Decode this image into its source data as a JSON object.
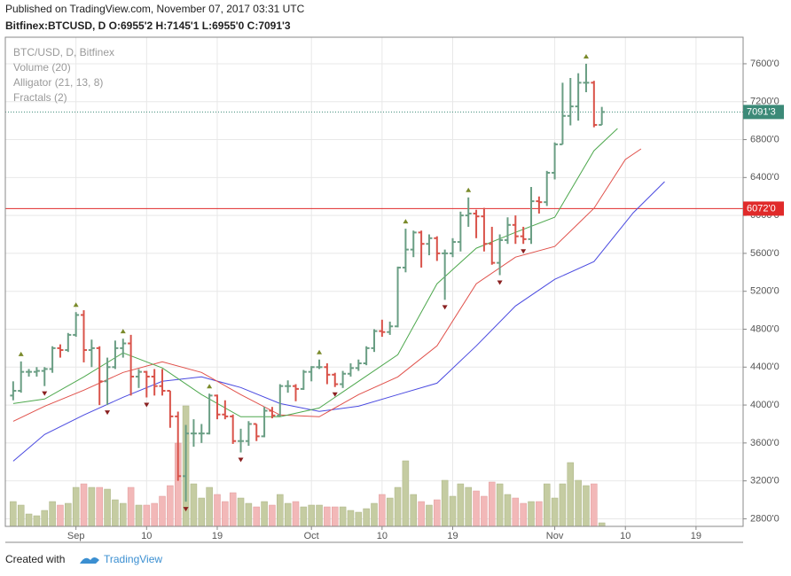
{
  "header": {
    "published": "Published on TradingView.com, November 07, 2017 03:31 UTC",
    "symbol_line": "Bitfinex:BTCUSD, D O:6955'2 H:7145'1 L:6955'0 C:7091'3"
  },
  "footer": {
    "created_with": "Created with",
    "brand": "TradingView"
  },
  "chart_data": {
    "type": "ohlc",
    "legend": [
      "BTC/USD, D, Bitfinex",
      "Volume (20)",
      "Alligator (21, 13, 8)",
      "Fractals (2)"
    ],
    "x": [
      "2017-08-24",
      "2017-08-25",
      "2017-08-26",
      "2017-08-27",
      "2017-08-28",
      "2017-08-29",
      "2017-08-30",
      "2017-08-31",
      "2017-09-01",
      "2017-09-02",
      "2017-09-03",
      "2017-09-04",
      "2017-09-05",
      "2017-09-06",
      "2017-09-07",
      "2017-09-08",
      "2017-09-09",
      "2017-09-10",
      "2017-09-11",
      "2017-09-12",
      "2017-09-13",
      "2017-09-14",
      "2017-09-15",
      "2017-09-16",
      "2017-09-17",
      "2017-09-18",
      "2017-09-19",
      "2017-09-20",
      "2017-09-21",
      "2017-09-22",
      "2017-09-23",
      "2017-09-24",
      "2017-09-25",
      "2017-09-26",
      "2017-09-27",
      "2017-09-28",
      "2017-09-29",
      "2017-09-30",
      "2017-10-01",
      "2017-10-02",
      "2017-10-03",
      "2017-10-04",
      "2017-10-05",
      "2017-10-06",
      "2017-10-07",
      "2017-10-08",
      "2017-10-09",
      "2017-10-10",
      "2017-10-11",
      "2017-10-12",
      "2017-10-13",
      "2017-10-14",
      "2017-10-15",
      "2017-10-16",
      "2017-10-17",
      "2017-10-18",
      "2017-10-19",
      "2017-10-20",
      "2017-10-21",
      "2017-10-22",
      "2017-10-23",
      "2017-10-24",
      "2017-10-25",
      "2017-10-26",
      "2017-10-27",
      "2017-10-28",
      "2017-10-29",
      "2017-10-30",
      "2017-10-31",
      "2017-11-01",
      "2017-11-02",
      "2017-11-03",
      "2017-11-04",
      "2017-11-05",
      "2017-11-06",
      "2017-11-07"
    ],
    "open": [
      4100,
      4150,
      4350,
      4350,
      4360,
      4380,
      4600,
      4580,
      4740,
      4950,
      4580,
      4600,
      4250,
      4400,
      4600,
      4650,
      4300,
      4350,
      4300,
      4200,
      4150,
      3880,
      3250,
      3700,
      3700,
      3700,
      4100,
      3900,
      3880,
      3620,
      3620,
      3800,
      3670,
      3940,
      3890,
      4200,
      4200,
      4170,
      4350,
      4400,
      4400,
      4320,
      4220,
      4330,
      4390,
      4440,
      4600,
      4780,
      4770,
      4830,
      5450,
      5640,
      5820,
      5700,
      5760,
      5600,
      5600,
      5720,
      6000,
      6020,
      5990,
      5700,
      5500,
      5740,
      5900,
      5780,
      5750,
      6150,
      6140,
      6450,
      6750,
      7050,
      7150,
      7400,
      7400,
      6955.2
    ],
    "high": [
      4250,
      4460,
      4380,
      4400,
      4400,
      4620,
      4640,
      4760,
      4980,
      5000,
      4690,
      4620,
      4500,
      4680,
      4700,
      4740,
      4380,
      4360,
      4380,
      4380,
      4150,
      3930,
      3790,
      3850,
      3800,
      4120,
      4110,
      4050,
      3900,
      3750,
      3830,
      3800,
      3980,
      3980,
      4220,
      4260,
      4220,
      4370,
      4410,
      4480,
      4440,
      4340,
      4360,
      4440,
      4480,
      4620,
      4800,
      4900,
      4880,
      5460,
      5860,
      5840,
      5840,
      5800,
      5780,
      5640,
      5760,
      6040,
      6190,
      6060,
      6080,
      5880,
      5800,
      5980,
      6000,
      5880,
      6300,
      6200,
      6470,
      6770,
      7400,
      7450,
      7500,
      7600,
      7420,
      7145.1
    ],
    "low": [
      4050,
      4130,
      4300,
      4300,
      4200,
      4340,
      4500,
      4560,
      4720,
      4450,
      4400,
      4000,
      4000,
      4380,
      4500,
      4100,
      4180,
      4080,
      4100,
      4100,
      3760,
      3200,
      2980,
      3560,
      3600,
      3690,
      3850,
      3850,
      3590,
      3500,
      3570,
      3620,
      3660,
      3860,
      3880,
      4130,
      4040,
      4160,
      4250,
      4380,
      4220,
      4190,
      4180,
      4300,
      4360,
      4420,
      4560,
      4720,
      4740,
      4820,
      5400,
      5560,
      5450,
      5580,
      5520,
      5110,
      5560,
      5620,
      5880,
      5760,
      5620,
      5480,
      5370,
      5700,
      5700,
      5700,
      5700,
      6020,
      6100,
      6380,
      6750,
      6950,
      7000,
      7300,
      6930,
      6955
    ],
    "close": [
      4150,
      4350,
      4350,
      4360,
      4380,
      4600,
      4580,
      4740,
      4950,
      4580,
      4600,
      4250,
      4400,
      4600,
      4650,
      4300,
      4350,
      4300,
      4200,
      4150,
      3880,
      3250,
      3700,
      3700,
      3700,
      4100,
      3900,
      3880,
      3620,
      3620,
      3800,
      3670,
      3940,
      3890,
      4200,
      4200,
      4170,
      4350,
      4400,
      4400,
      4320,
      4220,
      4330,
      4390,
      4440,
      4600,
      4780,
      4770,
      4830,
      5450,
      5640,
      5820,
      5700,
      5760,
      5600,
      5600,
      5720,
      6000,
      6020,
      5990,
      5700,
      5500,
      5740,
      5900,
      5780,
      5750,
      6150,
      6140,
      6450,
      6750,
      7050,
      7150,
      7400,
      7400,
      6955,
      7091.3
    ],
    "up_color": "#6a9e84",
    "down_color": "#d9534a",
    "volume": {
      "axis": "y2",
      "up_color": "#c5cca2",
      "down_color": "#f2b8b8",
      "values": [
        14,
        12,
        7,
        6,
        9,
        14,
        12,
        13,
        22,
        24,
        22,
        22,
        21,
        15,
        13,
        22,
        12,
        12,
        13,
        17,
        23,
        47,
        68,
        24,
        16,
        22,
        18,
        14,
        19,
        16,
        13,
        11,
        14,
        12,
        18,
        13,
        14,
        11,
        12,
        12,
        11,
        11,
        11,
        9,
        8,
        10,
        13,
        18,
        16,
        22,
        37,
        18,
        14,
        12,
        15,
        26,
        17,
        24,
        22,
        20,
        17,
        25,
        24,
        18,
        16,
        13,
        14,
        14,
        24,
        16,
        24,
        36,
        26,
        23,
        24,
        2
      ]
    },
    "lines": [
      {
        "color": "#4a4ae0",
        "x": [
          "2017-08-24",
          "2017-08-28",
          "2017-09-02",
          "2017-09-07",
          "2017-09-12",
          "2017-09-17",
          "2017-09-22",
          "2017-09-27",
          "2017-10-02",
          "2017-10-07",
          "2017-10-12",
          "2017-10-17",
          "2017-10-22",
          "2017-10-27",
          "2017-11-01",
          "2017-11-06",
          "2017-11-11",
          "2017-11-15"
        ],
        "values": [
          3408,
          3689,
          3895,
          4082,
          4250,
          4297,
          4185,
          4016,
          3932,
          3988,
          4110,
          4231,
          4624,
          5045,
          5326,
          5513,
          6028,
          6356
        ]
      },
      {
        "color": "#e0504a",
        "x": [
          "2017-08-24",
          "2017-08-28",
          "2017-09-02",
          "2017-09-07",
          "2017-09-12",
          "2017-09-17",
          "2017-09-22",
          "2017-09-27",
          "2017-10-02",
          "2017-10-07",
          "2017-10-12",
          "2017-10-17",
          "2017-10-22",
          "2017-10-27",
          "2017-11-01",
          "2017-11-06",
          "2017-11-10",
          "2017-11-12"
        ],
        "values": [
          3829,
          3988,
          4157,
          4344,
          4456,
          4344,
          4110,
          3895,
          3876,
          4110,
          4297,
          4624,
          5279,
          5560,
          5673,
          6075,
          6590,
          6702
        ]
      },
      {
        "color": "#4ea84e",
        "x": [
          "2017-08-24",
          "2017-08-28",
          "2017-09-02",
          "2017-09-07",
          "2017-09-12",
          "2017-09-17",
          "2017-09-22",
          "2017-09-27",
          "2017-10-02",
          "2017-10-07",
          "2017-10-12",
          "2017-10-17",
          "2017-10-22",
          "2017-10-27",
          "2017-11-01",
          "2017-11-06",
          "2017-11-09"
        ],
        "values": [
          4016,
          4063,
          4297,
          4550,
          4391,
          4110,
          3876,
          3876,
          3969,
          4250,
          4531,
          5279,
          5654,
          5822,
          5981,
          6683,
          6917
        ]
      }
    ],
    "fractals": {
      "up_color": "#7a8a2a",
      "down_color": "#8a2020",
      "up": [
        "2017-08-25",
        "2017-09-01",
        "2017-09-07",
        "2017-09-18",
        "2017-10-02",
        "2017-10-13",
        "2017-10-21",
        "2017-11-05"
      ],
      "down": [
        "2017-08-28",
        "2017-09-05",
        "2017-09-10",
        "2017-09-15",
        "2017-09-22",
        "2017-10-04",
        "2017-10-18",
        "2017-10-25",
        "2017-10-28"
      ]
    },
    "hlines": [
      {
        "value": 6072,
        "label": "6072'0",
        "color": "#e02a2a",
        "style": "solid"
      },
      {
        "value": 7091.3,
        "label": "7091'3",
        "color": "#3c8a78",
        "style": "dotted"
      }
    ],
    "xlim": [
      "2017-08-23",
      "2017-11-25"
    ],
    "xticks": [
      {
        "value": "2017-09-01",
        "label": "Sep"
      },
      {
        "value": "2017-09-10",
        "label": "10"
      },
      {
        "value": "2017-09-19",
        "label": "19"
      },
      {
        "value": "2017-10-01",
        "label": "Oct"
      },
      {
        "value": "2017-10-10",
        "label": "10"
      },
      {
        "value": "2017-10-19",
        "label": "19"
      },
      {
        "value": "2017-11-01",
        "label": "Nov"
      },
      {
        "value": "2017-11-10",
        "label": "10"
      },
      {
        "value": "2017-11-19",
        "label": "19"
      }
    ],
    "ylim": [
      2720,
      7880
    ],
    "yticks": [
      {
        "value": 2800,
        "label": "2800'0"
      },
      {
        "value": 3200,
        "label": "3200'0"
      },
      {
        "value": 3600,
        "label": "3600'0"
      },
      {
        "value": 4000,
        "label": "4000'0"
      },
      {
        "value": 4400,
        "label": "4400'0"
      },
      {
        "value": 4800,
        "label": "4800'0"
      },
      {
        "value": 5200,
        "label": "5200'0"
      },
      {
        "value": 5600,
        "label": "5600'0"
      },
      {
        "value": 6000,
        "label": "6000'0"
      },
      {
        "value": 6400,
        "label": "6400'0"
      },
      {
        "value": 6800,
        "label": "6800'0"
      },
      {
        "value": 7200,
        "label": "7200'0"
      },
      {
        "value": 7600,
        "label": "7600'0"
      }
    ],
    "y2lim": [
      0,
      276
    ],
    "grid": true
  }
}
